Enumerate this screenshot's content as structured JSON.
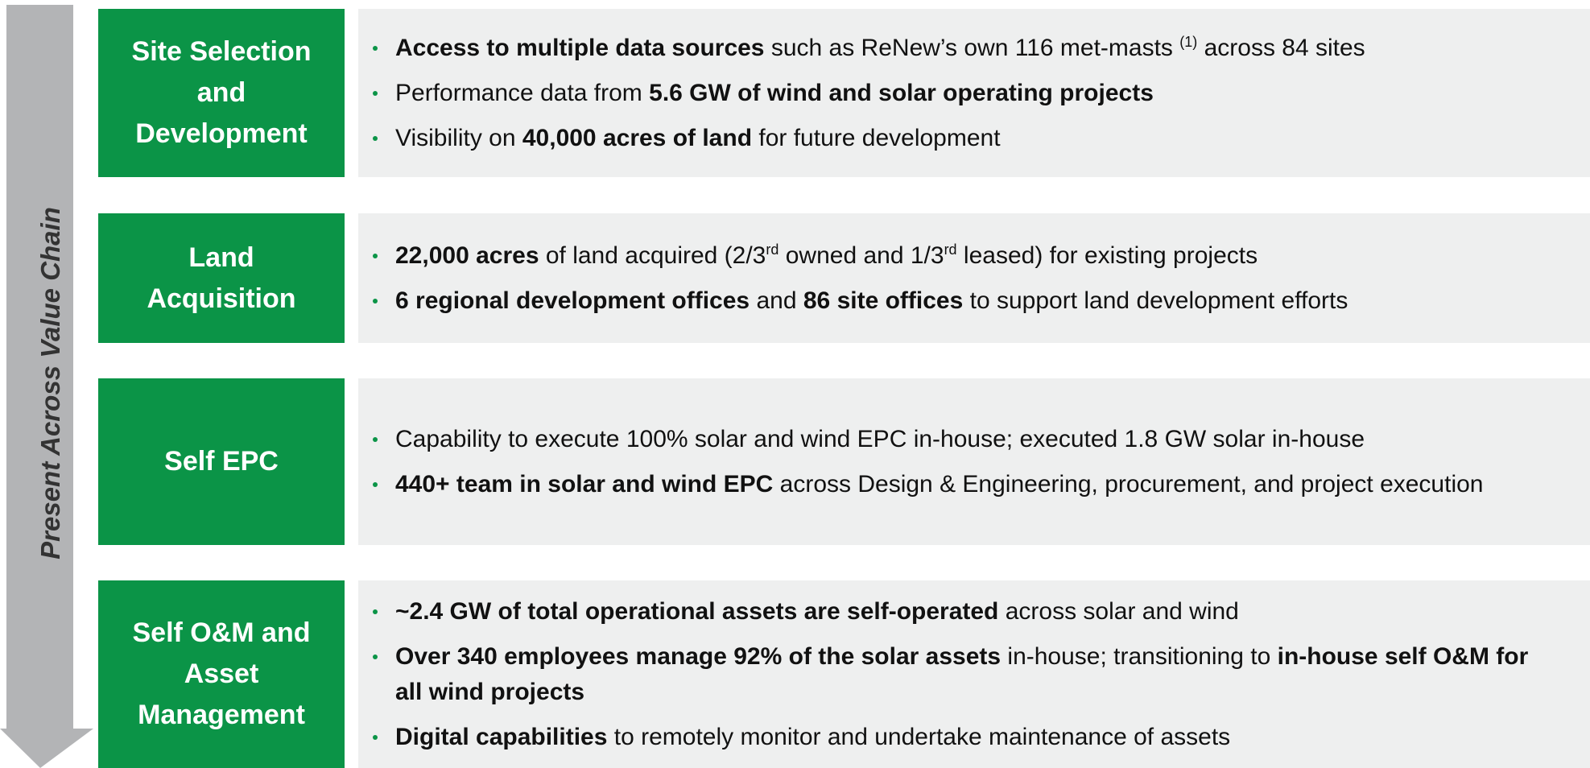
{
  "side_label": "Present Across Value Chain",
  "rows": [
    {
      "label": "Site Selection and Development",
      "bullets": [
        [
          {
            "text": "Access to multiple data sources",
            "bold": true
          },
          {
            "text": " such as ReNew’s own 116 met-masts "
          },
          {
            "text": "(1)",
            "sup": true
          },
          {
            "text": " across 84 sites"
          }
        ],
        [
          {
            "text": "Performance data from "
          },
          {
            "text": "5.6 GW of wind and solar operating projects",
            "bold": true
          }
        ],
        [
          {
            "text": "Visibility on "
          },
          {
            "text": "40,000 acres of land",
            "bold": true
          },
          {
            "text": " for future development"
          }
        ]
      ]
    },
    {
      "label": "Land Acquisition",
      "bullets": [
        [
          {
            "text": "22,000 acres",
            "bold": true
          },
          {
            "text": " of land acquired (2/3"
          },
          {
            "text": "rd",
            "sup": true
          },
          {
            "text": " owned and 1/3"
          },
          {
            "text": "rd",
            "sup": true
          },
          {
            "text": " leased) for existing projects"
          }
        ],
        [
          {
            "text": "6 regional development offices",
            "bold": true
          },
          {
            "text": " and "
          },
          {
            "text": "86 site offices",
            "bold": true
          },
          {
            "text": " to support land development efforts"
          }
        ]
      ]
    },
    {
      "label": "Self EPC",
      "bullets": [
        [
          {
            "text": "Capability to execute 100% solar and wind EPC in-house; executed 1.8 GW solar in-house"
          }
        ],
        [
          {
            "text": "440+ team in solar and wind EPC",
            "bold": true
          },
          {
            "text": " across Design & Engineering, procurement, and project execution"
          }
        ]
      ]
    },
    {
      "label": "Self O&M and Asset Management",
      "bullets": [
        [
          {
            "text": "~2.4 GW of total operational assets are self-operated",
            "bold": true
          },
          {
            "text": " across solar and wind"
          }
        ],
        [
          {
            "text": "Over 340 employees manage 92% of the solar assets",
            "bold": true
          },
          {
            "text": " in-house; transitioning to "
          },
          {
            "text": "in-house self O&M for all wind projects",
            "bold": true
          }
        ],
        [
          {
            "text": "Digital capabilities",
            "bold": true
          },
          {
            "text": " to remotely monitor and undertake maintenance of assets"
          }
        ]
      ]
    }
  ]
}
